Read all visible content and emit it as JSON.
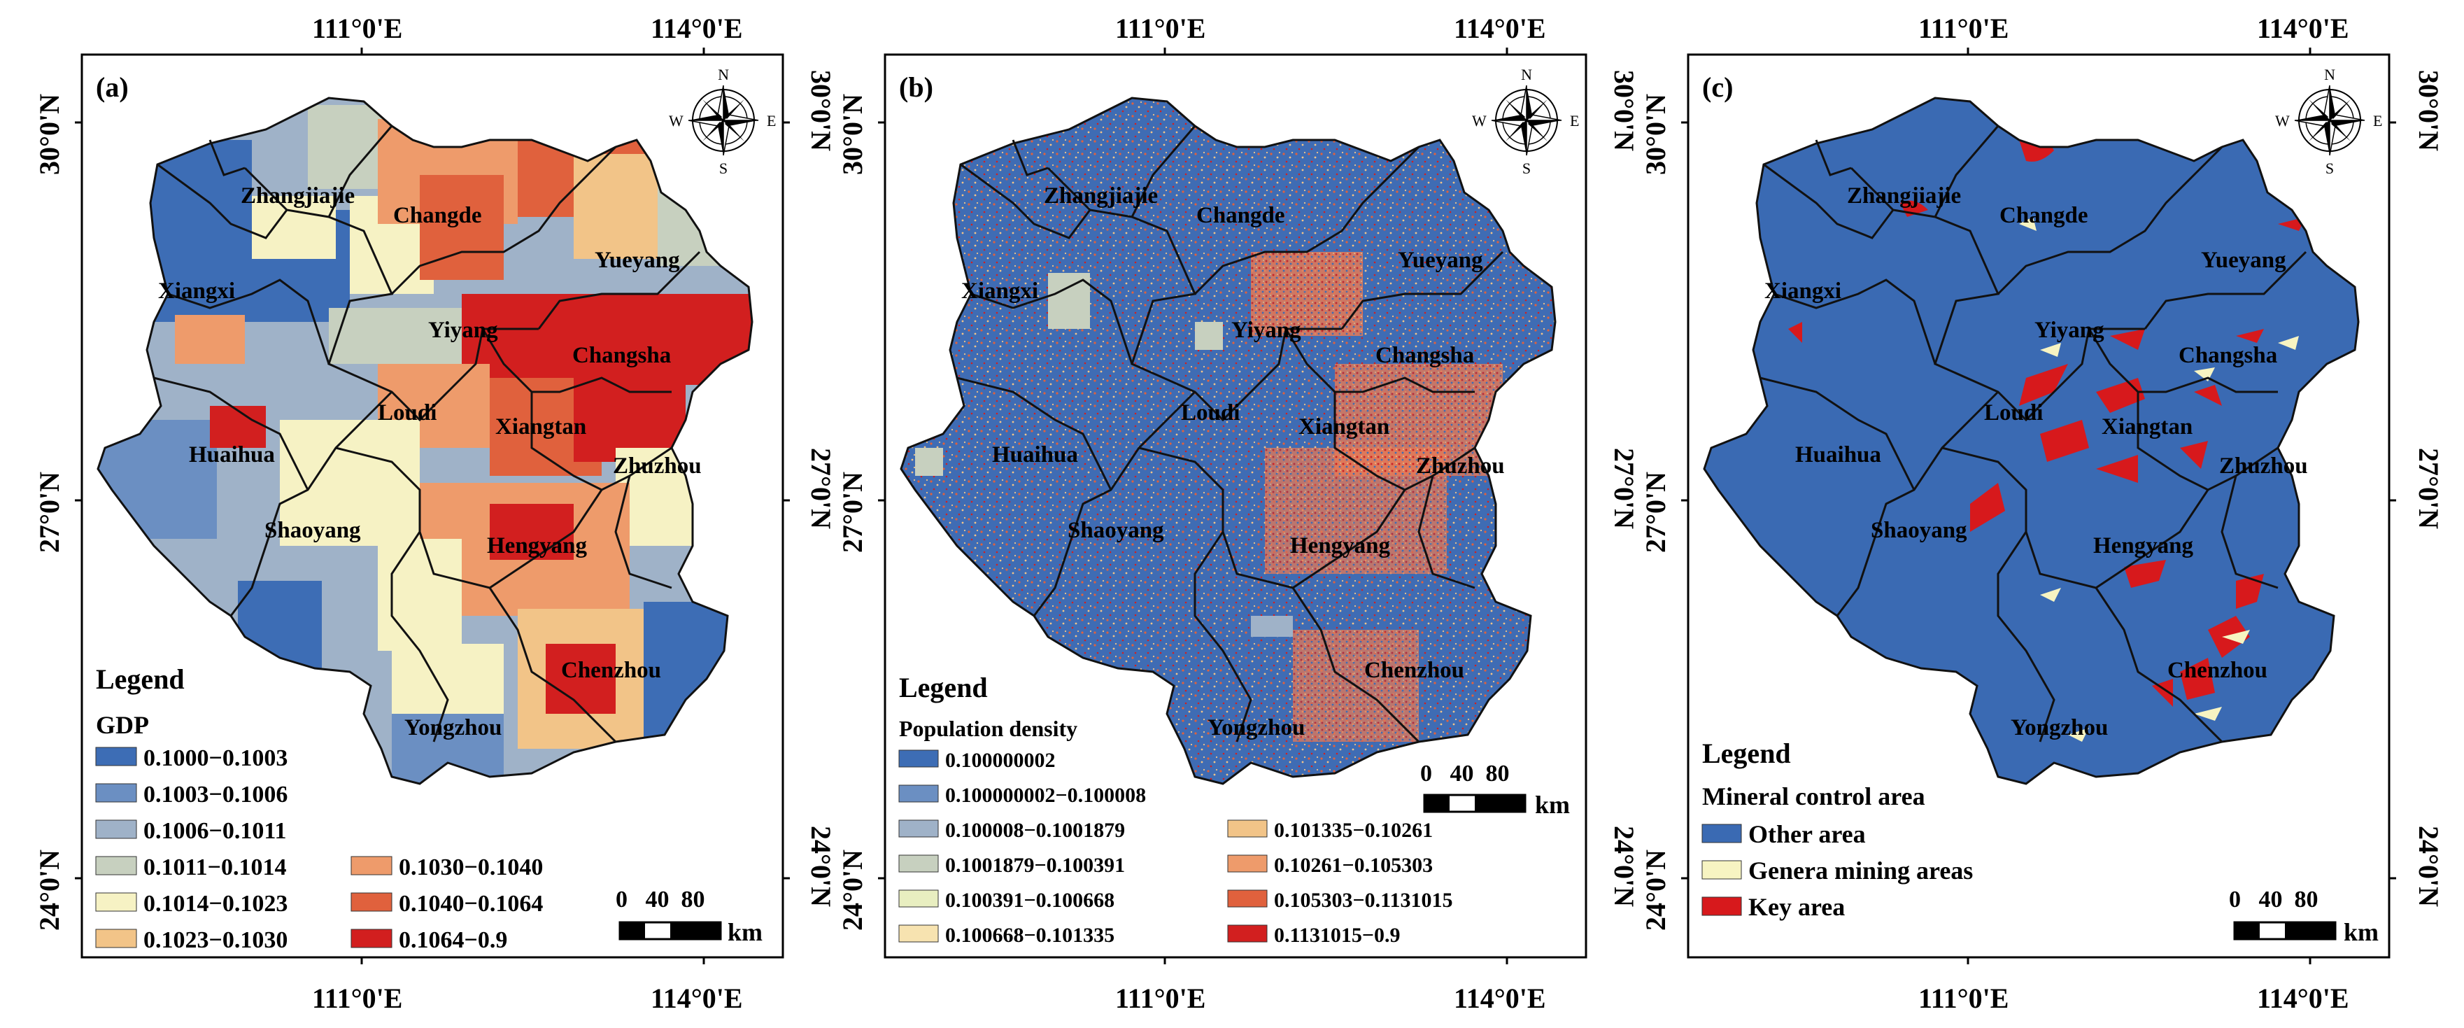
{
  "coords": {
    "lon_labels": [
      "111°0'E",
      "114°0'E"
    ],
    "lat_labels": [
      "30°0'N",
      "27°0'N",
      "24°0'N"
    ]
  },
  "compass": {
    "n": "N",
    "s": "S",
    "e": "E",
    "w": "W"
  },
  "colors": {
    "blue_dark": "#3d6db5",
    "blue_mid": "#6b8fc2",
    "blue_gray": "#9fb2c8",
    "sage": "#c7d0bf",
    "cream": "#f6f2c4",
    "peach": "#f2c488",
    "salmon": "#ee9b6b",
    "orange_red": "#e0613d",
    "red": "#d21f1f",
    "bg_blue": "#3a6ab3",
    "pale_yellow": "#f7f4c2",
    "key_red": "#d7191c"
  },
  "panels": [
    {
      "id": "a",
      "tag": "(a)",
      "legend_title": "Legend",
      "legend_subtitle": "GDP",
      "legend_items_left": [
        "0.1000−0.1003",
        "0.1003−0.1006",
        "0.1006−0.1011",
        "0.1011−0.1014",
        "0.1014−0.1023",
        "0.1023−0.1030"
      ],
      "legend_items_right": [
        "0.1030−0.1040",
        "0.1040−0.1064",
        "0.1064−0.9"
      ],
      "scale_numbers": "0   40  80",
      "scale_unit": "km"
    },
    {
      "id": "b",
      "tag": "(b)",
      "legend_title": "Legend",
      "legend_subtitle": "Population density",
      "legend_items_left": [
        "0.100000002",
        "0.100000002−0.100008",
        "0.100008−0.1001879",
        "0.1001879−0.100391",
        "0.100391−0.100668",
        "0.100668−0.101335"
      ],
      "legend_items_right": [
        "0.101335−0.10261",
        "0.10261−0.105303",
        "0.105303−0.1131015",
        "0.1131015−0.9"
      ],
      "scale_numbers": "0   40  80",
      "scale_unit": "km"
    },
    {
      "id": "c",
      "tag": "(c)",
      "legend_title": "Legend",
      "legend_subtitle": "Mineral control area",
      "legend_items": [
        "Other area",
        "Genera mining areas",
        "Key area"
      ],
      "scale_numbers": "0   40  80",
      "scale_unit": "km"
    }
  ],
  "cities": {
    "zhangjiajie": "Zhangjiajie",
    "changde": "Changde",
    "yueyang": "Yueyang",
    "xiangxi": "Xiangxi",
    "yiyang": "Yiyang",
    "changsha": "Changsha",
    "loudi": "Loudi",
    "xiangtan": "Xiangtan",
    "huaihua": "Huaihua",
    "zhuzhou": "Zhuzhou",
    "shaoyang": "Shaoyang",
    "hengyang": "Hengyang",
    "chenzhou": "Chenzhou",
    "yongzhou": "Yongzhou"
  }
}
